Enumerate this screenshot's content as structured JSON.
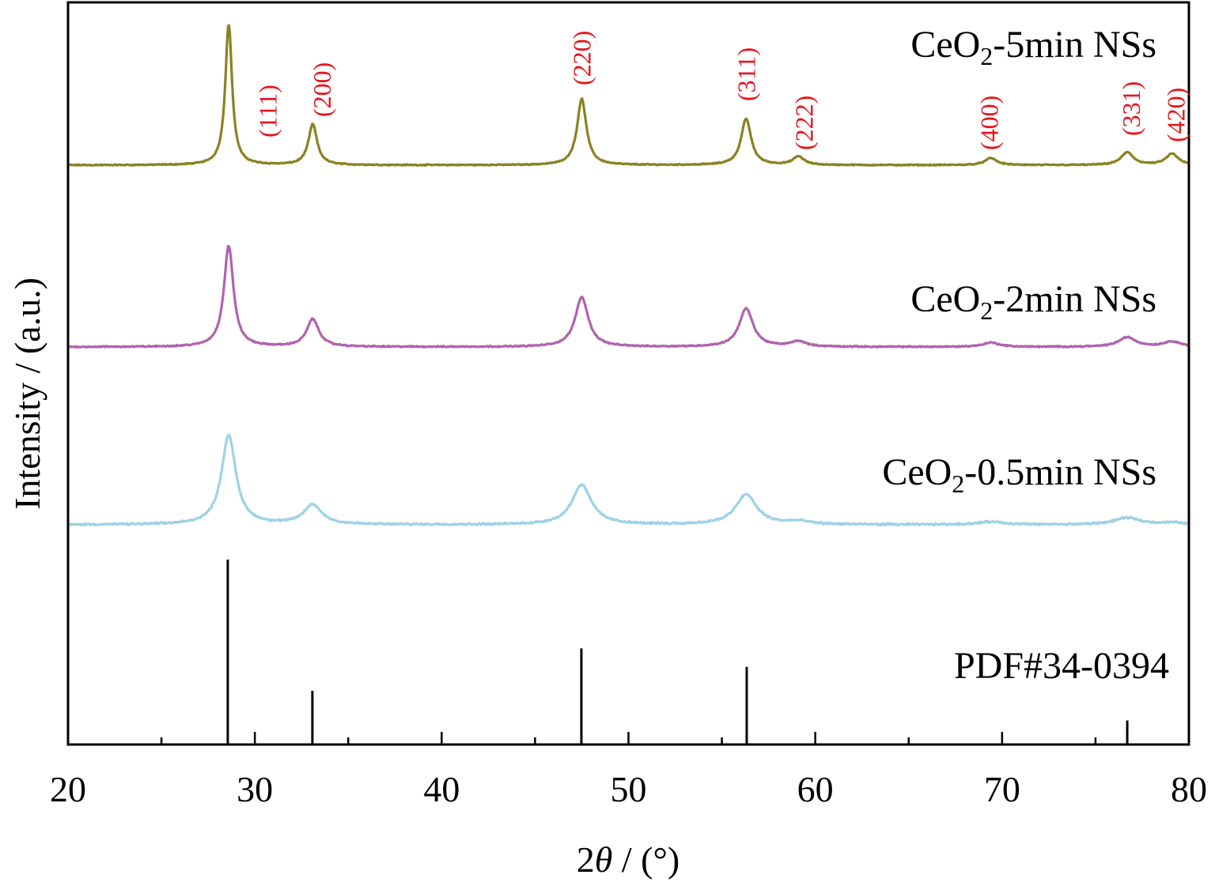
{
  "chart_data": {
    "type": "line",
    "xlabel": {
      "prefix": "2",
      "theta": "θ",
      "suffix": " / (°)"
    },
    "ylabel": "Intensity / (a.u.)",
    "xlim": [
      20,
      80
    ],
    "x_ticks": [
      20,
      30,
      40,
      50,
      60,
      70,
      80
    ],
    "x_tick_labels": [
      "20",
      "30",
      "40",
      "50",
      "60",
      "70",
      "80"
    ],
    "x_minor_step": 5,
    "colors": {
      "series_5min": "#8b8222",
      "series_2min": "#b064ad",
      "series_05min": "#9ed2e6",
      "reference": "#000000",
      "hkl_label": "#e8141c"
    },
    "peak_positions": [
      28.6,
      33.1,
      47.5,
      56.3,
      59.1,
      69.4,
      76.7,
      79.1
    ],
    "series": [
      {
        "name": "CeO2-5min NSs",
        "label_parts": {
          "prefix": "CeO",
          "sub": "2",
          "suffix": "-5min NSs"
        },
        "baseline": 0.24,
        "amplitude": 1.0,
        "width_scale": 1.0,
        "noise": 0.004,
        "peak_rel_heights": [
          1.0,
          0.29,
          0.47,
          0.33,
          0.06,
          0.05,
          0.09,
          0.08
        ]
      },
      {
        "name": "CeO2-2min NSs",
        "label_parts": {
          "prefix": "CeO",
          "sub": "2",
          "suffix": "-2min NSs"
        },
        "baseline": 0.24,
        "amplitude": 0.85,
        "width_scale": 1.4,
        "noise": 0.005,
        "peak_rel_heights": [
          0.95,
          0.26,
          0.47,
          0.36,
          0.05,
          0.04,
          0.09,
          0.05
        ]
      },
      {
        "name": "CeO2-0.5min NSs",
        "label_parts": {
          "prefix": "CeO",
          "sub": "2",
          "suffix": "-0.5min NSs"
        },
        "baseline": 0.24,
        "amplitude": 0.85,
        "width_scale": 2.1,
        "noise": 0.008,
        "peak_rel_heights": [
          0.92,
          0.2,
          0.41,
          0.31,
          0.03,
          0.03,
          0.07,
          0.02
        ]
      }
    ],
    "reference": {
      "name": "PDF#34-0394",
      "peaks": [
        {
          "x": 28.55,
          "rel_intensity": 100
        },
        {
          "x": 33.08,
          "rel_intensity": 29
        },
        {
          "x": 47.48,
          "rel_intensity": 52
        },
        {
          "x": 56.33,
          "rel_intensity": 42
        },
        {
          "x": 76.7,
          "rel_intensity": 13
        }
      ]
    },
    "hkl_labels": [
      {
        "text": "(111)",
        "x": 30.7
      },
      {
        "text": "(200)",
        "x": 33.6
      },
      {
        "text": "(220)",
        "x": 47.5
      },
      {
        "text": "(311)",
        "x": 56.3
      },
      {
        "text": "(222)",
        "x": 59.4
      },
      {
        "text": "(400)",
        "x": 69.3
      },
      {
        "text": "(331)",
        "x": 76.9
      },
      {
        "text": "(420)",
        "x": 79.3
      }
    ]
  }
}
